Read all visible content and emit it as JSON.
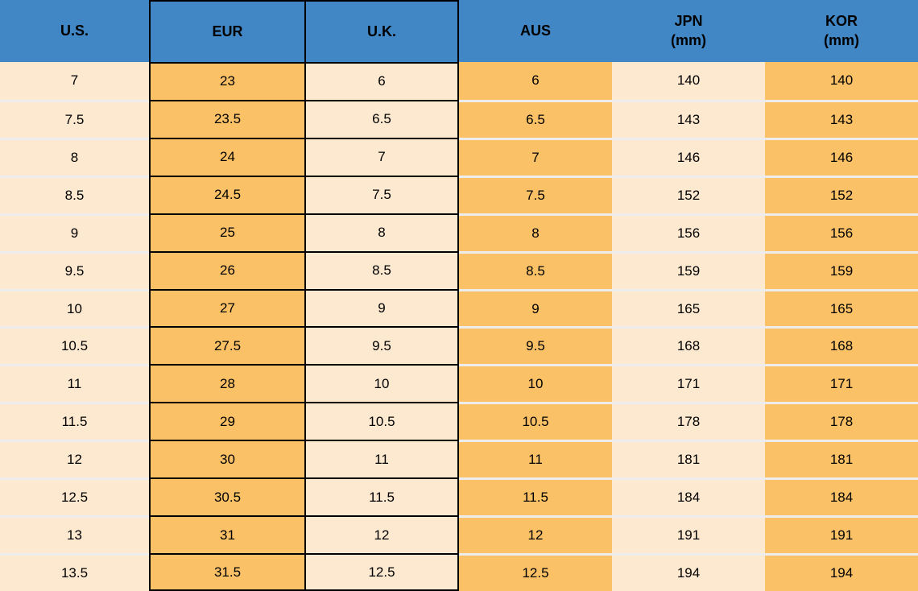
{
  "colors": {
    "header_bg": "#4187C5",
    "orange": "#FBC167",
    "cream": "#FDE9D0",
    "grid_black": "#000000",
    "row_separator": "#EDEDED",
    "text": "#000000"
  },
  "table": {
    "columns": [
      {
        "key": "us",
        "label": "U.S.",
        "unit": ""
      },
      {
        "key": "eur",
        "label": "EUR",
        "unit": ""
      },
      {
        "key": "uk",
        "label": "U.K.",
        "unit": ""
      },
      {
        "key": "aus",
        "label": "AUS",
        "unit": ""
      },
      {
        "key": "jpn",
        "label": "JPN",
        "unit": "(mm)"
      },
      {
        "key": "kor",
        "label": "KOR",
        "unit": "(mm)"
      }
    ],
    "rows": [
      [
        "7",
        "23",
        "6",
        "6",
        "140",
        "140"
      ],
      [
        "7.5",
        "23.5",
        "6.5",
        "6.5",
        "143",
        "143"
      ],
      [
        "8",
        "24",
        "7",
        "7",
        "146",
        "146"
      ],
      [
        "8.5",
        "24.5",
        "7.5",
        "7.5",
        "152",
        "152"
      ],
      [
        "9",
        "25",
        "8",
        "8",
        "156",
        "156"
      ],
      [
        "9.5",
        "26",
        "8.5",
        "8.5",
        "159",
        "159"
      ],
      [
        "10",
        "27",
        "9",
        "9",
        "165",
        "165"
      ],
      [
        "10.5",
        "27.5",
        "9.5",
        "9.5",
        "168",
        "168"
      ],
      [
        "11",
        "28",
        "10",
        "10",
        "171",
        "171"
      ],
      [
        "11.5",
        "29",
        "10.5",
        "10.5",
        "178",
        "178"
      ],
      [
        "12",
        "30",
        "11",
        "11",
        "181",
        "181"
      ],
      [
        "12.5",
        "30.5",
        "11.5",
        "11.5",
        "184",
        "184"
      ],
      [
        "13",
        "31",
        "12",
        "12",
        "191",
        "191"
      ],
      [
        "13.5",
        "31.5",
        "12.5",
        "12.5",
        "194",
        "194"
      ]
    ]
  },
  "chart_data": {
    "type": "table",
    "columns": [
      "U.S.",
      "EUR",
      "U.K.",
      "AUS",
      "JPN (mm)",
      "KOR (mm)"
    ],
    "rows": [
      [
        "7",
        "23",
        "6",
        "6",
        "140",
        "140"
      ],
      [
        "7.5",
        "23.5",
        "6.5",
        "6.5",
        "143",
        "143"
      ],
      [
        "8",
        "24",
        "7",
        "7",
        "146",
        "146"
      ],
      [
        "8.5",
        "24.5",
        "7.5",
        "7.5",
        "152",
        "152"
      ],
      [
        "9",
        "25",
        "8",
        "8",
        "156",
        "156"
      ],
      [
        "9.5",
        "26",
        "8.5",
        "8.5",
        "159",
        "159"
      ],
      [
        "10",
        "27",
        "9",
        "9",
        "165",
        "165"
      ],
      [
        "10.5",
        "27.5",
        "9.5",
        "9.5",
        "168",
        "168"
      ],
      [
        "11",
        "28",
        "10",
        "10",
        "171",
        "171"
      ],
      [
        "11.5",
        "29",
        "10.5",
        "10.5",
        "178",
        "178"
      ],
      [
        "12",
        "30",
        "11",
        "11",
        "181",
        "181"
      ],
      [
        "12.5",
        "30.5",
        "11.5",
        "11.5",
        "184",
        "184"
      ],
      [
        "13",
        "31",
        "12",
        "12",
        "191",
        "191"
      ],
      [
        "13.5",
        "31.5",
        "12.5",
        "12.5",
        "194",
        "194"
      ]
    ]
  }
}
